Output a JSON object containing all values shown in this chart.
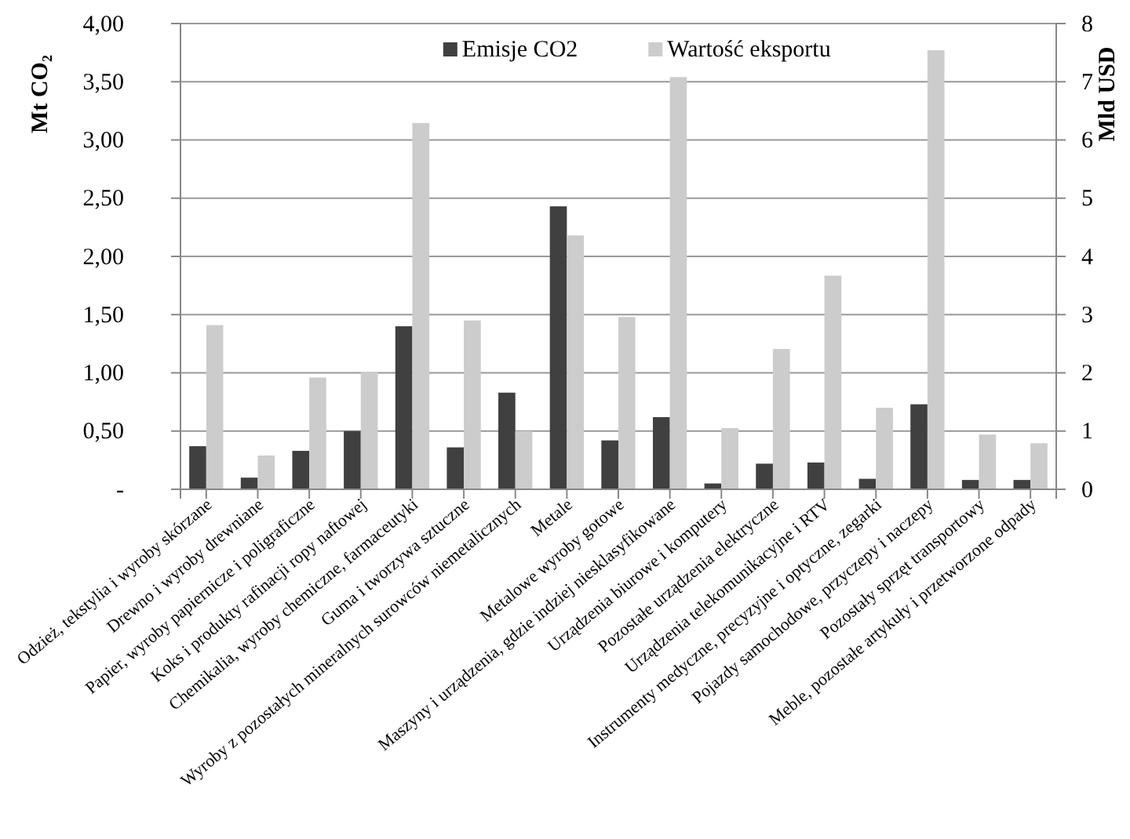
{
  "chart_data": {
    "type": "bar",
    "categories": [
      "Odzież, tekstylia i wyroby skórzane",
      "Drewno i wyroby drewniane",
      "Papier, wyroby papiernicze i poligraficzne",
      "Koks i produkty rafinacji ropy naftowej",
      "Chemikalia, wyroby chemiczne, farmaceutyki",
      "Guma i tworzywa sztuczne",
      "Wyroby z pozostałych mineralnych surowców niemetalicznych",
      "Metale",
      "Metalowe wyroby gotowe",
      "Maszyny i urządzenia, gdzie indziej niesklasyfikowane",
      "Urządzenia biurowe i komputery",
      "Pozostałe urządzenia elektryczne",
      "Urządzenia telekomunikacyjne i RTV",
      "Instrumenty medyczne, precyzyjne i optyczne, zegarki",
      "Pojazdy samochodowe, przyczepy i naczepy",
      "Pozostały sprzęt transportowy",
      "Meble, pozostałe artykuły i przetworzone odpady"
    ],
    "series": [
      {
        "name": "Emisje CO2",
        "color": "#404040",
        "values": [
          0.37,
          0.1,
          0.33,
          0.5,
          1.4,
          0.36,
          0.83,
          2.43,
          0.42,
          0.62,
          0.05,
          0.22,
          0.23,
          0.09,
          0.73,
          0.08,
          0.08
        ]
      },
      {
        "name": "Wartość eksportu",
        "color": "#cccccc",
        "axis": "y2",
        "values": [
          2.82,
          0.58,
          1.92,
          2.01,
          6.29,
          2.9,
          1.0,
          4.36,
          2.96,
          7.08,
          1.05,
          2.41,
          3.67,
          1.4,
          7.54,
          0.94,
          0.79
        ]
      }
    ],
    "ylabel": "Mt CO₂",
    "y2label": "Mld USD",
    "ylim": [
      0,
      4
    ],
    "yticks": [
      {
        "value": 0,
        "label": "-"
      },
      {
        "value": 0.5,
        "label": "0,50"
      },
      {
        "value": 1,
        "label": "1,00"
      },
      {
        "value": 1.5,
        "label": "1,50"
      },
      {
        "value": 2,
        "label": "2,00"
      },
      {
        "value": 2.5,
        "label": "2,50"
      },
      {
        "value": 3,
        "label": "3,00"
      },
      {
        "value": 3.5,
        "label": "3,50"
      },
      {
        "value": 4,
        "label": "4,00"
      }
    ],
    "y2lim": [
      0,
      8
    ],
    "y2ticks": [
      0,
      1,
      2,
      3,
      4,
      5,
      6,
      7,
      8
    ],
    "grid": "y",
    "legend": "top"
  }
}
